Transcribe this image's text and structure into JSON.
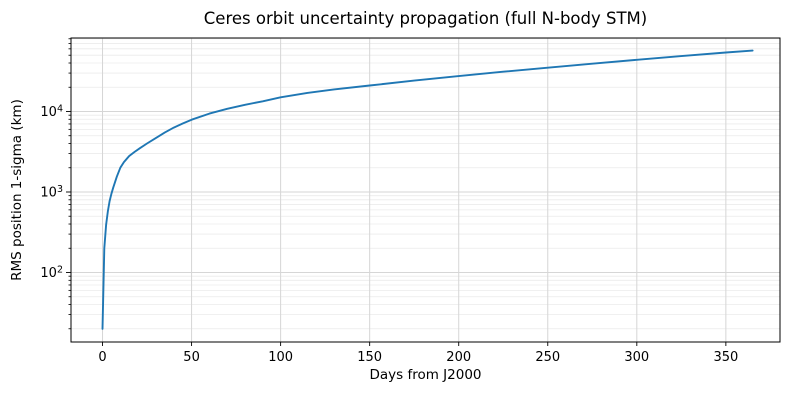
{
  "chart_data": {
    "type": "line",
    "title": "Ceres orbit uncertainty propagation (full N-body STM)",
    "xlabel": "Days from J2000",
    "ylabel": "RMS position 1-sigma (km)",
    "x_scale": "linear",
    "y_scale": "log",
    "xlim": [
      -17.7,
      380.4
    ],
    "ylim": [
      13.7,
      81800
    ],
    "grid": "both",
    "legend": "none",
    "line_color": "#1f77b4",
    "x_ticks": [
      {
        "value": 0,
        "label": "0"
      },
      {
        "value": 50,
        "label": "50"
      },
      {
        "value": 100,
        "label": "100"
      },
      {
        "value": 150,
        "label": "150"
      },
      {
        "value": 200,
        "label": "200"
      },
      {
        "value": 250,
        "label": "250"
      },
      {
        "value": 300,
        "label": "300"
      },
      {
        "value": 350,
        "label": "350"
      }
    ],
    "y_ticks": [
      {
        "value": 100,
        "mantissa": "10",
        "exponent": "2"
      },
      {
        "value": 1000,
        "mantissa": "10",
        "exponent": "3"
      },
      {
        "value": 10000,
        "mantissa": "10",
        "exponent": "4"
      }
    ],
    "series": [
      {
        "name": "RMS position 1-sigma",
        "x": [
          0,
          1,
          2,
          3,
          4,
          5,
          6,
          8,
          10,
          12,
          15,
          18,
          21,
          25,
          30,
          35,
          40,
          45,
          50,
          60,
          70,
          80,
          90,
          100,
          115,
          130,
          150,
          175,
          200,
          225,
          250,
          275,
          300,
          325,
          350,
          365
        ],
        "y": [
          20,
          200,
          390,
          580,
          770,
          950,
          1130,
          1550,
          2000,
          2350,
          2800,
          3150,
          3500,
          4000,
          4700,
          5500,
          6300,
          7100,
          7900,
          9400,
          10800,
          12100,
          13400,
          15000,
          17000,
          18800,
          21000,
          24200,
          27500,
          31200,
          35000,
          39200,
          43800,
          48800,
          54000,
          57000
        ]
      }
    ]
  }
}
